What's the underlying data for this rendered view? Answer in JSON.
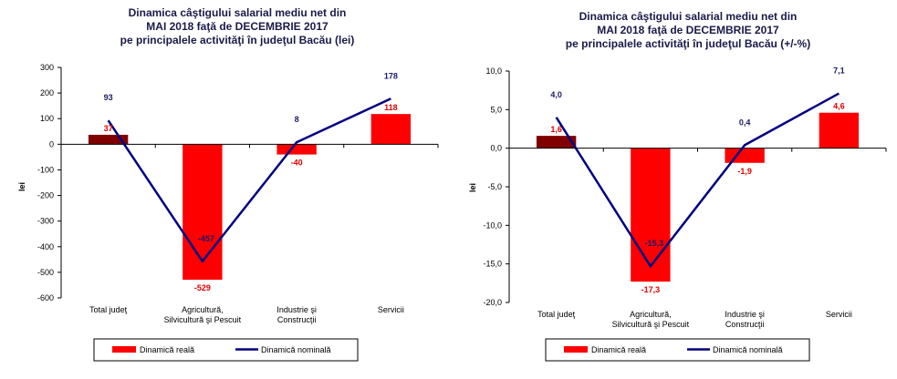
{
  "chart_data": [
    {
      "type": "bar",
      "title_lines": [
        "Dinamica câştigului salarial mediu net din",
        "MAI 2018 faţă de DECEMBRIE 2017",
        "pe principalele activităţi în judeţul Bacău (lei)"
      ],
      "ylabel": "lei",
      "ylim": [
        -600,
        300
      ],
      "yticks": [
        300,
        200,
        100,
        0,
        -100,
        -200,
        -300,
        -400,
        -500,
        -600
      ],
      "ytick_labels": [
        "300",
        "200",
        "100",
        "0",
        "-100",
        "-200",
        "-300",
        "-400",
        "-500",
        "-600"
      ],
      "categories": [
        [
          "Total judeţ"
        ],
        [
          "Agricultură,",
          "Silvicultură şi Pescuit"
        ],
        [
          "Industrie şi",
          "Construcţii"
        ],
        [
          "Servicii"
        ]
      ],
      "series": [
        {
          "name": "Dinamică reală",
          "kind": "bar",
          "values": [
            37,
            -529,
            -40,
            118
          ],
          "labels": [
            "37",
            "-529",
            "-40",
            "118"
          ],
          "colors": [
            "#800000",
            "#ff0000",
            "#ff0000",
            "#ff0000"
          ]
        },
        {
          "name": "Dinamică nominală",
          "kind": "line",
          "values": [
            93,
            -457,
            8,
            178
          ],
          "labels": [
            "93",
            "-457",
            "8",
            "178"
          ],
          "color": "#000080"
        }
      ],
      "legend": [
        "Dinamică reală",
        "Dinamică nominală"
      ]
    },
    {
      "type": "bar",
      "title_lines": [
        "Dinamica câştigului salarial mediu net din",
        "MAI 2018 faţă de DECEMBRIE 2017",
        "pe principalele activităţi în judeţul Bacău (+/-%)"
      ],
      "ylabel": "lei",
      "ylim": [
        -20,
        10
      ],
      "yticks": [
        10,
        5,
        0,
        -5,
        -10,
        -15,
        -20
      ],
      "ytick_labels": [
        "10,0",
        "5,0",
        "0,0",
        "-5,0",
        "-10,0",
        "-15,0",
        "-20,0"
      ],
      "categories": [
        [
          "Total judeţ"
        ],
        [
          "Agricultură,",
          "Silvicultură şi Pescuit"
        ],
        [
          "Industrie şi",
          "Construcţii"
        ],
        [
          "Servicii"
        ]
      ],
      "series": [
        {
          "name": "Dinamică reală",
          "kind": "bar",
          "values": [
            1.6,
            -17.3,
            -1.9,
            4.6
          ],
          "labels": [
            "1,6",
            "-17,3",
            "-1,9",
            "4,6"
          ],
          "colors": [
            "#800000",
            "#ff0000",
            "#ff0000",
            "#ff0000"
          ]
        },
        {
          "name": "Dinamică nominală",
          "kind": "line",
          "values": [
            4.0,
            -15.3,
            0.4,
            7.1
          ],
          "labels": [
            "4,0",
            "-15,3",
            "0,4",
            "7,1"
          ],
          "color": "#000080"
        }
      ],
      "legend": [
        "Dinamică reală",
        "Dinamică nominală"
      ]
    }
  ]
}
